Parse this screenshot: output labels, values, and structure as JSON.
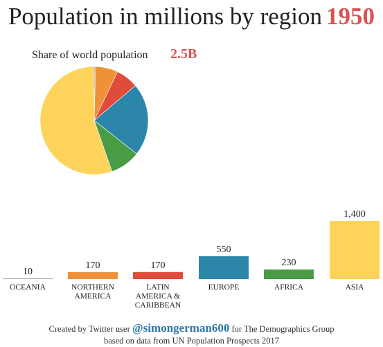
{
  "header": {
    "title": "Population in millions by region",
    "year": "1950"
  },
  "pie": {
    "label": "Share of world population",
    "total": "2.5B"
  },
  "footer": {
    "prefix": "Created by Twitter user",
    "handle": "@simongerman600",
    "suffix": "for The Demographics Group",
    "line2": "based on data from UN Population Prospects 2017"
  },
  "chart_data": [
    {
      "type": "pie",
      "title": "Share of world population",
      "categories": [
        "OCEANIA",
        "NORTHERN AMERICA",
        "LATIN AMERICA & CARIBBEAN",
        "EUROPE",
        "AFRICA",
        "ASIA"
      ],
      "values": [
        10,
        170,
        170,
        550,
        230,
        1400
      ],
      "colors": [
        "#9a9a9a",
        "#ee9139",
        "#df4c3a",
        "#2b86a9",
        "#4a9b45",
        "#fed35b"
      ]
    },
    {
      "type": "bar",
      "title": "Population in millions by region 1950",
      "categories": [
        "OCEANIA",
        "NORTHERN AMERICA",
        "LATIN AMERICA & CARIBBEAN",
        "EUROPE",
        "AFRICA",
        "ASIA"
      ],
      "category_lines": [
        [
          "OCEANIA"
        ],
        [
          "NORTHERN",
          "AMERICA"
        ],
        [
          "LATIN",
          "AMERICA &",
          "CARIBBEAN"
        ],
        [
          "EUROPE"
        ],
        [
          "AFRICA"
        ],
        [
          "ASIA"
        ]
      ],
      "values": [
        10,
        170,
        170,
        550,
        230,
        1400
      ],
      "value_labels": [
        "10",
        "170",
        "170",
        "550",
        "230",
        "1,400"
      ],
      "colors": [
        "#9a9a9a",
        "#ee9139",
        "#df4c3a",
        "#2b86a9",
        "#4a9b45",
        "#fed35b"
      ],
      "ylim": [
        0,
        1400
      ]
    }
  ]
}
